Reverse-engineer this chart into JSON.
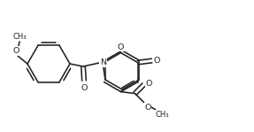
{
  "bg_color": "#ffffff",
  "line_color": "#222222",
  "lw": 1.15,
  "font_size": 6.8,
  "fig_width": 2.87,
  "fig_height": 1.49,
  "dpi": 100,
  "xlim": [
    0,
    287
  ],
  "ylim": [
    0,
    149
  ]
}
